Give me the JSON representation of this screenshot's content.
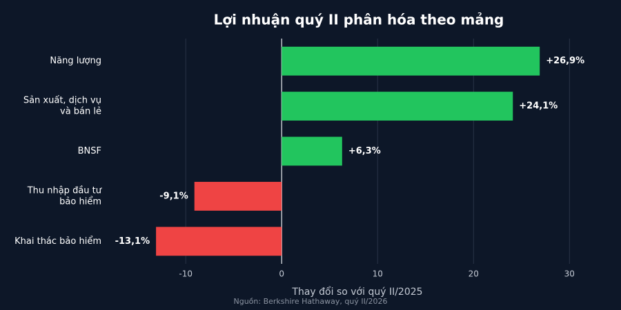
{
  "chart_data": {
    "type": "hbar",
    "title": "Lợi nhuận quý II phân hóa theo mảng",
    "categories": [
      [
        "Năng lượng"
      ],
      [
        "Sản xuất, dịch vụ",
        "và bán lẻ"
      ],
      [
        "BNSF"
      ],
      [
        "Thu nhập đầu tư",
        "bảo hiểm"
      ],
      [
        "Khai thác bảo hiểm"
      ]
    ],
    "values": [
      26.9,
      24.1,
      6.3,
      -9.1,
      -13.1
    ],
    "value_labels": [
      "+26,9%",
      "+24,1%",
      "+6,3%",
      "-9,1%",
      "-13,1%"
    ],
    "colors": [
      "#22c55e",
      "#22c55e",
      "#22c55e",
      "#ef4444",
      "#ef4444"
    ],
    "xlim": [
      -18,
      33
    ],
    "xticks": [
      -10,
      0,
      10,
      20,
      30
    ],
    "xlabel": "Thay đổi so với quý II/2025",
    "source": "Nguồn: Berkshire Hathaway, quý II/2026",
    "grid": true
  }
}
